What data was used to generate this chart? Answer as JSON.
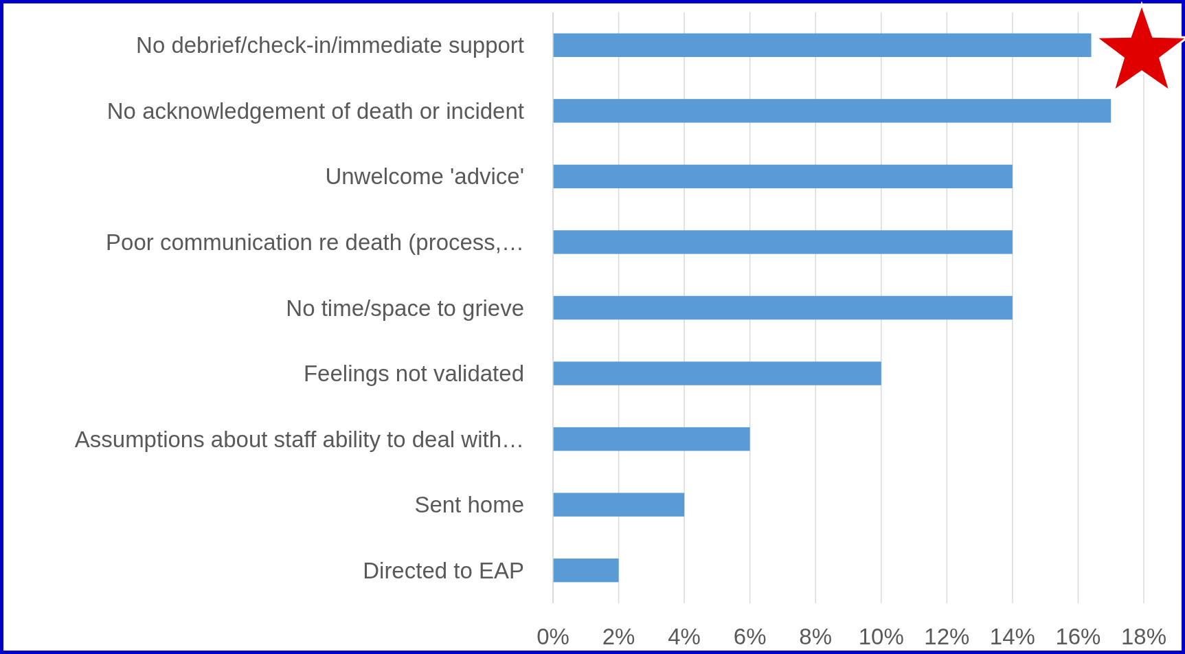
{
  "chart_data": {
    "type": "bar",
    "orientation": "horizontal",
    "categories": [
      "No debrief/check-in/immediate support",
      "No acknowledgement of death or incident",
      "Unwelcome 'advice'",
      "Poor communication re death (process,…",
      "No time/space to grieve",
      "Feelings not validated",
      "Assumptions about staff ability to deal with…",
      "Sent home",
      "Directed to EAP"
    ],
    "values": [
      16.4,
      17,
      14,
      14,
      14,
      10,
      6,
      4,
      2
    ],
    "color": "#5b9bd5",
    "xlim": [
      0,
      18
    ],
    "xticks": [
      {
        "value": 0,
        "label": "0%"
      },
      {
        "value": 2,
        "label": "2%"
      },
      {
        "value": 4,
        "label": "4%"
      },
      {
        "value": 6,
        "label": "6%"
      },
      {
        "value": 8,
        "label": "8%"
      },
      {
        "value": 10,
        "label": "10%"
      },
      {
        "value": 12,
        "label": "12%"
      },
      {
        "value": 14,
        "label": "14%"
      },
      {
        "value": 16,
        "label": "16%"
      },
      {
        "value": 18,
        "label": "18%"
      }
    ],
    "grid": "x"
  }
}
